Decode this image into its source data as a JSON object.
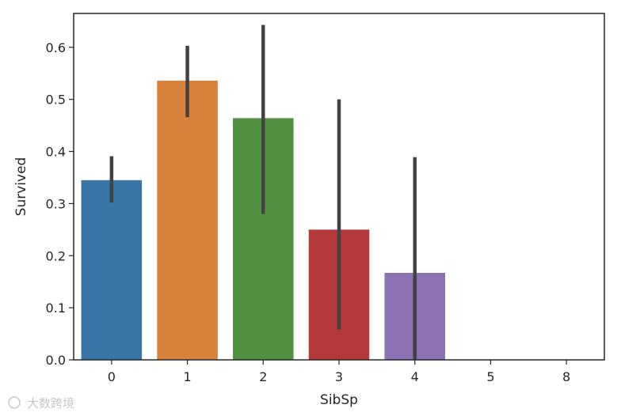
{
  "chart_data": {
    "type": "bar",
    "xlabel": "SibSp",
    "ylabel": "Survived",
    "categories": [
      "0",
      "1",
      "2",
      "3",
      "4",
      "5",
      "8"
    ],
    "values": [
      0.345,
      0.536,
      0.464,
      0.25,
      0.167,
      0,
      0
    ],
    "ci_low": [
      0.302,
      0.466,
      0.28,
      0.058,
      0.0,
      null,
      null
    ],
    "ci_high": [
      0.391,
      0.603,
      0.643,
      0.5,
      0.389,
      null,
      null
    ],
    "colors": [
      "#3a75a7",
      "#d9823b",
      "#4f9140",
      "#b5393b",
      "#8c72b3",
      "#8b5a4a",
      "#d48fc0"
    ],
    "ylim": [
      0,
      0.665
    ],
    "yticks": [
      0.0,
      0.1,
      0.2,
      0.3,
      0.4,
      0.5,
      0.6
    ],
    "ytick_labels": [
      "0.0",
      "0.1",
      "0.2",
      "0.3",
      "0.4",
      "0.5",
      "0.6"
    ],
    "grid": false,
    "legend": "none"
  },
  "watermark": {
    "text": "大数跨境"
  }
}
